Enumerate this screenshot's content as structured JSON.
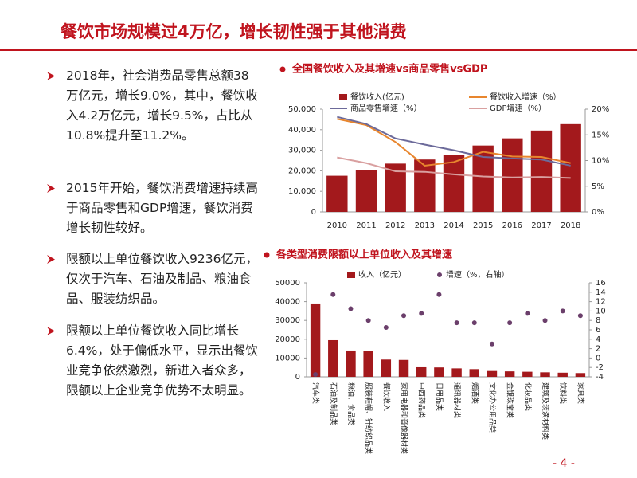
{
  "header": {
    "title": "餐饮市场规模过4万亿，增长韧性强于其他消费"
  },
  "bullets": [
    "2018年，社会消费品零售总额38万亿元，增长9.0%，其中，餐饮收入4.2万亿元，增长9.5%，占比从10.8%提升至11.2%。",
    "2015年开始，餐饮消费增速持续高于商品零售和GDP增速，餐饮消费增长韧性较好。",
    "限额以上单位餐饮收入9236亿元，仅次于汽车、石油及制品、粮油食品、服装纺织品。",
    "限额以上单位餐饮收入同比增长6.4%，处于偏低水平，显示出餐饮业竞争依然激烈，新进入者众多，限额以上企业竞争优势不太明显。"
  ],
  "page_number": "- 4 -",
  "chart_data": [
    {
      "type": "combo",
      "title": "全国餐饮收入及其增速vs商品零售vsGDP",
      "categories": [
        "2010",
        "2011",
        "2012",
        "2013",
        "2014",
        "2015",
        "2016",
        "2017",
        "2018"
      ],
      "series": [
        {
          "name": "餐饮收入(亿元)",
          "type": "bar",
          "color": "#a3191c",
          "values": [
            17600,
            20500,
            23500,
            25500,
            27900,
            32300,
            35800,
            39600,
            42700
          ]
        },
        {
          "name": "餐饮收入增速（%）",
          "type": "line",
          "axis": "y2",
          "color": "#e8862e",
          "values": [
            18.1,
            16.9,
            13.6,
            9.0,
            9.7,
            11.7,
            10.8,
            10.7,
            9.5
          ]
        },
        {
          "name": "商品零售增速（%）",
          "type": "line",
          "axis": "y2",
          "color": "#6c6a9a",
          "values": [
            18.5,
            17.1,
            14.3,
            13.1,
            12.0,
            10.7,
            10.4,
            10.2,
            9.0
          ]
        },
        {
          "name": "GDP增速（%）",
          "type": "line",
          "axis": "y2",
          "color": "#d9a0a0",
          "values": [
            10.6,
            9.5,
            7.9,
            7.8,
            7.3,
            6.9,
            6.7,
            6.8,
            6.6
          ]
        }
      ],
      "ylim": [
        0,
        50000
      ],
      "yticks": [
        0,
        {
          "value": 10000,
          "label": "10,000"
        },
        {
          "value": 20000,
          "label": "20,000"
        },
        {
          "value": 30000,
          "label": "30,000"
        },
        {
          "value": 40000,
          "label": "40,000"
        },
        {
          "value": 50000,
          "label": "50,000"
        }
      ],
      "y2lim": [
        0,
        20
      ],
      "y2ticks": [
        {
          "value": 0,
          "label": "0%"
        },
        {
          "value": 5,
          "label": "5%"
        },
        {
          "value": 10,
          "label": "10%"
        },
        {
          "value": 15,
          "label": "15%"
        },
        {
          "value": 20,
          "label": "20%"
        }
      ]
    },
    {
      "type": "combo",
      "title": "各类型消费限额以上单位收入及其增速",
      "categories": [
        "汽车类",
        "石油及制品类",
        "粮油、食品类",
        "服装鞋帽、针纺织品类",
        "餐饮收入",
        "家用电器和音像器材类",
        "中西药品类",
        "日用品类",
        "通讯器材类",
        "烟酒类",
        "文化办公用品类",
        "金银珠宝类",
        "化妆品类",
        "建筑及装潢材料类",
        "饮料类",
        "家具类"
      ],
      "series": [
        {
          "name": "收入（亿元）",
          "type": "bar",
          "color": "#a3191c",
          "values": [
            39000,
            19500,
            14000,
            13800,
            9200,
            9000,
            5100,
            5000,
            4500,
            4100,
            3100,
            2900,
            2700,
            2400,
            2200,
            2000
          ]
        },
        {
          "name": "增速（%，右轴）",
          "type": "scatter",
          "axis": "y2",
          "color": "#6b3f6b",
          "values": [
            -3.5,
            13.5,
            10.5,
            8,
            6.5,
            9,
            9.5,
            13.5,
            7.5,
            7.5,
            3,
            7.5,
            9.5,
            8,
            10,
            9
          ]
        }
      ],
      "ylim": [
        0,
        50000
      ],
      "yticks": [
        0,
        10000,
        20000,
        30000,
        40000,
        50000
      ],
      "y2lim": [
        -4,
        16
      ],
      "y2ticks": [
        -4,
        -2,
        0,
        2,
        4,
        6,
        8,
        10,
        12,
        14,
        16
      ]
    }
  ]
}
